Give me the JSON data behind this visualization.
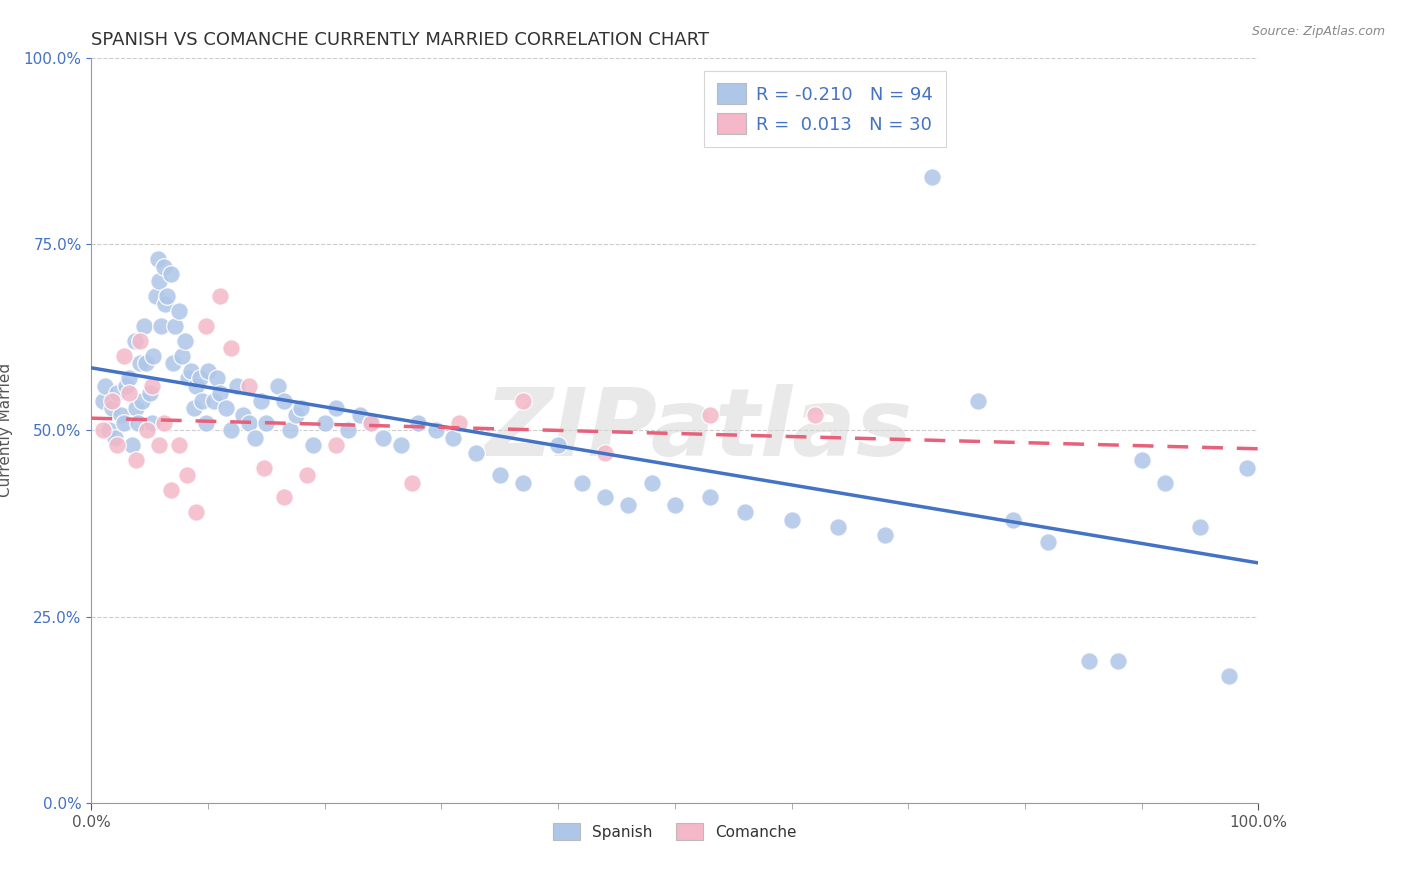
{
  "title": "SPANISH VS COMANCHE CURRENTLY MARRIED CORRELATION CHART",
  "source_text": "Source: ZipAtlas.com",
  "ylabel": "Currently Married",
  "xlim": [
    0.0,
    1.0
  ],
  "ylim": [
    0.0,
    1.0
  ],
  "ytick_values": [
    0.0,
    0.25,
    0.5,
    0.75,
    1.0
  ],
  "ytick_labels": [
    "0.0%",
    "25.0%",
    "50.0%",
    "75.0%",
    "100.0%"
  ],
  "xtick_values": [
    0.0,
    1.0
  ],
  "xtick_labels": [
    "0.0%",
    "100.0%"
  ],
  "watermark": "ZIPatlas",
  "spanish_color": "#aec6e8",
  "comanche_color": "#f4b8c8",
  "spanish_line_color": "#4472c4",
  "comanche_line_color": "#e8607a",
  "R_spanish": -0.21,
  "R_comanche": 0.013,
  "N_spanish": 94,
  "N_comanche": 30,
  "title_fontsize": 13,
  "axis_label_fontsize": 11,
  "tick_fontsize": 11,
  "legend_fontsize": 13,
  "background_color": "#ffffff",
  "grid_color": "#cccccc",
  "title_color": "#333333",
  "tick_color_y": "#4472c4",
  "tick_color_x": "#555555",
  "label_color": "#555555",
  "sp_x": [
    0.01,
    0.012,
    0.015,
    0.018,
    0.02,
    0.022,
    0.025,
    0.028,
    0.03,
    0.032,
    0.035,
    0.037,
    0.038,
    0.04,
    0.042,
    0.043,
    0.045,
    0.047,
    0.05,
    0.052,
    0.053,
    0.055,
    0.057,
    0.058,
    0.06,
    0.062,
    0.063,
    0.065,
    0.068,
    0.07,
    0.072,
    0.075,
    0.078,
    0.08,
    0.083,
    0.085,
    0.088,
    0.09,
    0.093,
    0.095,
    0.098,
    0.1,
    0.105,
    0.108,
    0.11,
    0.115,
    0.12,
    0.125,
    0.13,
    0.135,
    0.14,
    0.145,
    0.15,
    0.16,
    0.165,
    0.17,
    0.175,
    0.18,
    0.19,
    0.2,
    0.21,
    0.22,
    0.23,
    0.24,
    0.25,
    0.265,
    0.28,
    0.295,
    0.31,
    0.33,
    0.35,
    0.37,
    0.4,
    0.42,
    0.44,
    0.46,
    0.48,
    0.5,
    0.53,
    0.56,
    0.6,
    0.64,
    0.68,
    0.72,
    0.76,
    0.79,
    0.82,
    0.855,
    0.88,
    0.9,
    0.92,
    0.95,
    0.975,
    0.99
  ],
  "sp_y": [
    0.54,
    0.56,
    0.5,
    0.53,
    0.49,
    0.55,
    0.52,
    0.51,
    0.56,
    0.57,
    0.48,
    0.62,
    0.53,
    0.51,
    0.59,
    0.54,
    0.64,
    0.59,
    0.55,
    0.51,
    0.6,
    0.68,
    0.73,
    0.7,
    0.64,
    0.72,
    0.67,
    0.68,
    0.71,
    0.59,
    0.64,
    0.66,
    0.6,
    0.62,
    0.57,
    0.58,
    0.53,
    0.56,
    0.57,
    0.54,
    0.51,
    0.58,
    0.54,
    0.57,
    0.55,
    0.53,
    0.5,
    0.56,
    0.52,
    0.51,
    0.49,
    0.54,
    0.51,
    0.56,
    0.54,
    0.5,
    0.52,
    0.53,
    0.48,
    0.51,
    0.53,
    0.5,
    0.52,
    0.51,
    0.49,
    0.48,
    0.51,
    0.5,
    0.49,
    0.47,
    0.44,
    0.43,
    0.48,
    0.43,
    0.41,
    0.4,
    0.43,
    0.4,
    0.41,
    0.39,
    0.38,
    0.37,
    0.36,
    0.84,
    0.54,
    0.38,
    0.35,
    0.19,
    0.19,
    0.46,
    0.43,
    0.37,
    0.17,
    0.45
  ],
  "co_x": [
    0.01,
    0.018,
    0.022,
    0.028,
    0.032,
    0.038,
    0.042,
    0.048,
    0.052,
    0.058,
    0.062,
    0.068,
    0.075,
    0.082,
    0.09,
    0.098,
    0.11,
    0.12,
    0.135,
    0.148,
    0.165,
    0.185,
    0.21,
    0.24,
    0.275,
    0.315,
    0.37,
    0.44,
    0.53,
    0.62
  ],
  "co_y": [
    0.5,
    0.54,
    0.48,
    0.6,
    0.55,
    0.46,
    0.62,
    0.5,
    0.56,
    0.48,
    0.51,
    0.42,
    0.48,
    0.44,
    0.39,
    0.64,
    0.68,
    0.61,
    0.56,
    0.45,
    0.41,
    0.44,
    0.48,
    0.51,
    0.43,
    0.51,
    0.54,
    0.47,
    0.52,
    0.52
  ]
}
